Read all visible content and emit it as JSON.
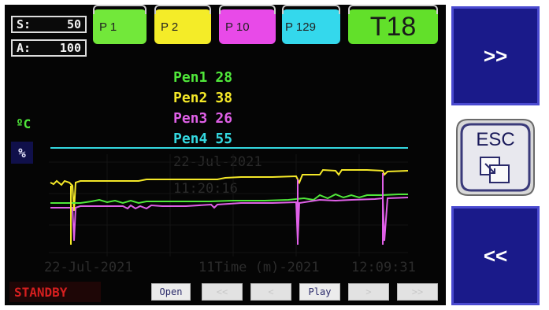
{
  "sa": {
    "s_label": "S:",
    "s_value": "50",
    "a_label": "A:",
    "a_value": "100"
  },
  "pens": [
    {
      "label": "P 1",
      "color": "#72e83a"
    },
    {
      "label": "P 2",
      "color": "#f4ec28"
    },
    {
      "label": "P 10",
      "color": "#e84ae8"
    },
    {
      "label": "P 129",
      "color": "#34d8ec"
    }
  ],
  "tab_t": {
    "label": "T18",
    "color": "#62e02a"
  },
  "readouts": [
    {
      "name": "Pen1",
      "value": "28",
      "color": "#50e83a"
    },
    {
      "name": "Pen2",
      "value": "38",
      "color": "#f4e828"
    },
    {
      "name": "Pen3",
      "value": "26",
      "color": "#e060e8"
    },
    {
      "name": "Pen4",
      "value": "55",
      "color": "#34d8e0"
    }
  ],
  "units": {
    "celsius": "ºC",
    "percent": "%"
  },
  "timestamps": {
    "date_left": "22-Jul-2021",
    "time_label": "11Time (m)-2021",
    "time_right": "12:09:31",
    "ghost_date": "22-Jul-2021",
    "ghost_time": "11:20:16"
  },
  "status": "STANDBY",
  "controls": {
    "open": "Open",
    "rewind": "<<",
    "back": "<",
    "play": "Play",
    "forward": ">",
    "fast_forward": ">>"
  },
  "side": {
    "next": ">>",
    "esc": "ESC",
    "prev": "<<"
  }
}
